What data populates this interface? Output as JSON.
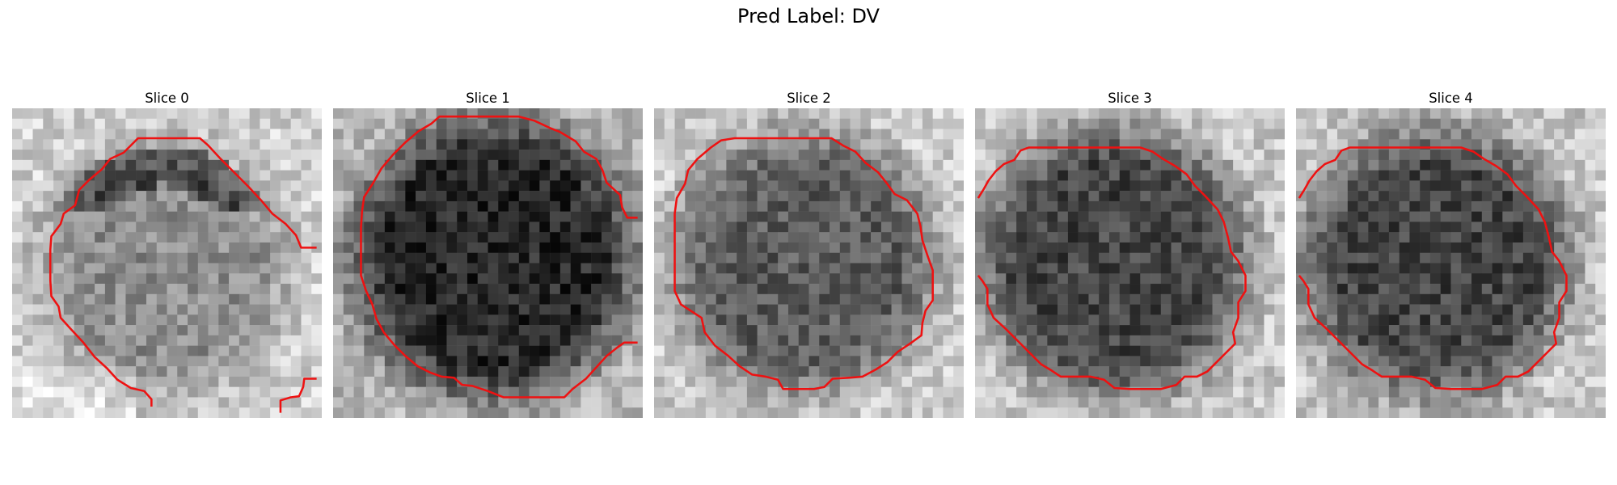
{
  "figure": {
    "suptitle": "Pred Label: DV",
    "contour_color": "#ee1111",
    "panels": [
      {
        "title": "Slice 0"
      },
      {
        "title": "Slice 1"
      },
      {
        "title": "Slice 2"
      },
      {
        "title": "Slice 3"
      },
      {
        "title": "Slice 4"
      }
    ]
  }
}
